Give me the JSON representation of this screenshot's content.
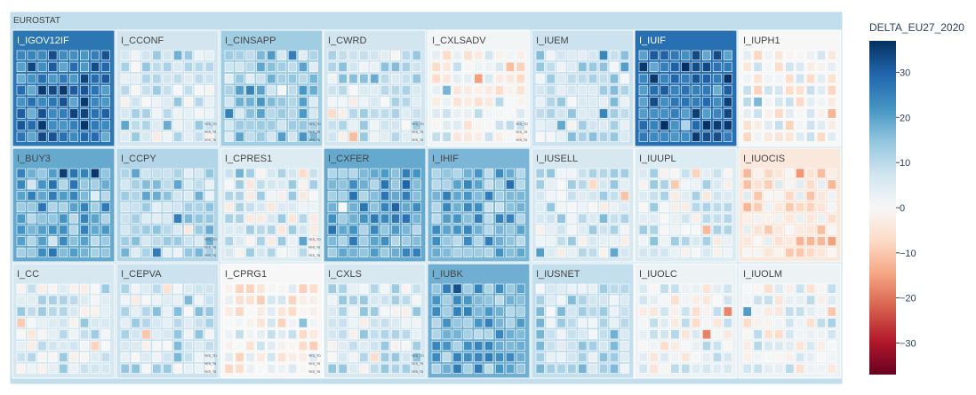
{
  "chart_data": {
    "type": "treemap",
    "root_label": "EUROSTAT",
    "color_variable": "DELTA_EU27_2020",
    "colorscale": {
      "name": "RdBu",
      "range": [
        -37,
        37
      ],
      "stops": [
        "#67001f",
        "#b2182b",
        "#d6604d",
        "#f4a582",
        "#fddbc7",
        "#f7f7f7",
        "#d1e5f0",
        "#92c5de",
        "#4393c3",
        "#2166ac",
        "#053061"
      ]
    },
    "colorbar": {
      "title": "DELTA_EU27_2020",
      "ticks": [
        30,
        20,
        10,
        0,
        -10,
        -20,
        -30
      ],
      "tick_labels": [
        "30",
        "20",
        "10",
        "0",
        "−10",
        "−20",
        "−30"
      ]
    },
    "groups": [
      {
        "label": "I_IGOV12IF",
        "value": -27
      },
      {
        "label": "I_CCONF",
        "value": -7
      },
      {
        "label": "I_CINSAPP",
        "value": -13
      },
      {
        "label": "I_CWRD",
        "value": -7
      },
      {
        "label": "I_CXLSADV",
        "value": -1
      },
      {
        "label": "I_IUEM",
        "value": -8
      },
      {
        "label": "I_IUIF",
        "value": -28
      },
      {
        "label": "I_IUPH1",
        "value": 0
      },
      {
        "label": "I_BUY3",
        "value": -19
      },
      {
        "label": "I_CCPY",
        "value": -11
      },
      {
        "label": "I_CPRES1",
        "value": -5
      },
      {
        "label": "I_CXFER",
        "value": -19
      },
      {
        "label": "I_IHIF",
        "value": -17
      },
      {
        "label": "I_IUSELL",
        "value": -6
      },
      {
        "label": "I_IUUPL",
        "value": -5
      },
      {
        "label": "I_IUOCIS",
        "value": 4
      },
      {
        "label": "I_CC",
        "value": -6
      },
      {
        "label": "I_CEPVA",
        "value": -8
      },
      {
        "label": "I_CPRG1",
        "value": 0
      },
      {
        "label": "I_CXLS",
        "value": -6
      },
      {
        "label": "I_IUBK",
        "value": -18
      },
      {
        "label": "I_IUSNET",
        "value": -9
      },
      {
        "label": "I_IUOLC",
        "value": -2
      },
      {
        "label": "I_IUOLM",
        "value": -2
      }
    ],
    "small_labels": [
      "YES_TO",
      "YES_T9",
      "YES_T6"
    ]
  }
}
